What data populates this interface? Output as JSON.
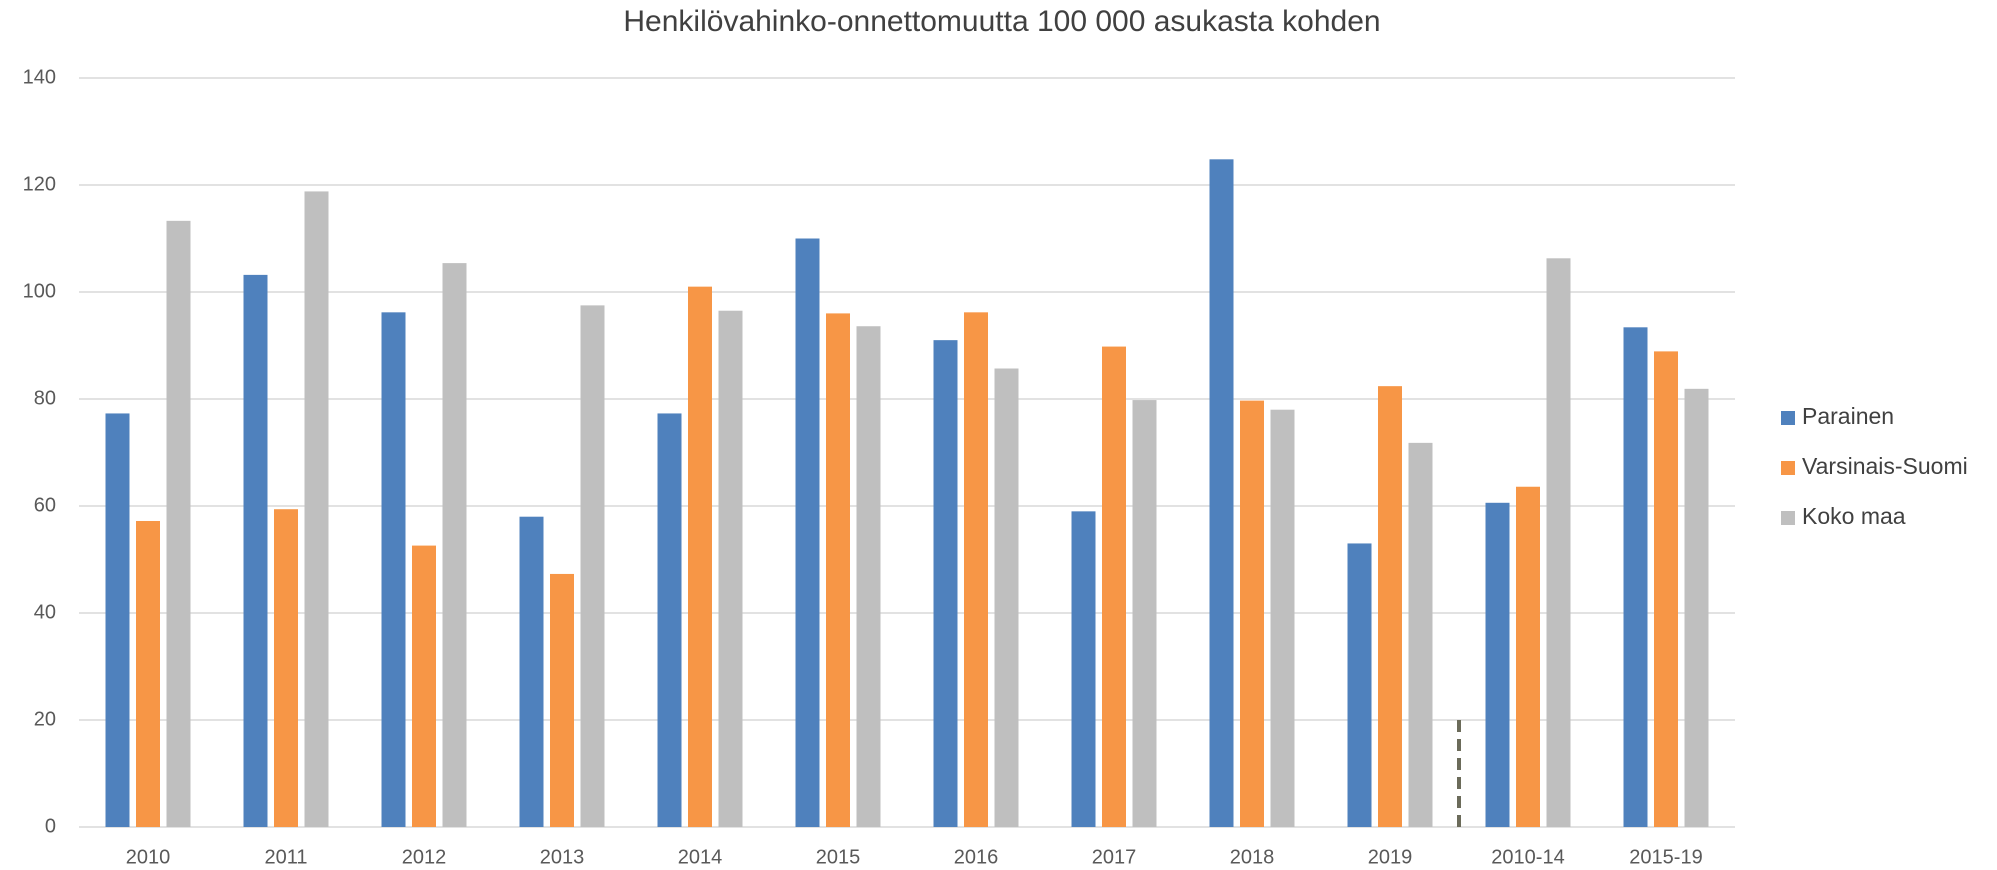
{
  "chart_data": {
    "type": "bar",
    "title": "Henkilövahinko-onnettomuutta 100 000 asukasta kohden",
    "categories": [
      "2010",
      "2011",
      "2012",
      "2013",
      "2014",
      "2015",
      "2016",
      "2017",
      "2018",
      "2019",
      "2010-14",
      "2015-19"
    ],
    "series": [
      {
        "name": "Parainen",
        "color": "#4f81bd",
        "values": [
          77.3,
          103.2,
          96.2,
          58,
          77.3,
          110,
          91,
          59,
          124.8,
          53,
          60.6,
          93.4
        ]
      },
      {
        "name": "Varsinais-Suomi",
        "color": "#f79646",
        "values": [
          57.2,
          59.4,
          52.6,
          47.3,
          101,
          96,
          96.2,
          89.8,
          79.7,
          82.4,
          63.6,
          88.9
        ]
      },
      {
        "name": "Koko maa",
        "color": "#bfbfbf",
        "values": [
          113.3,
          118.8,
          105.4,
          97.5,
          96.5,
          93.6,
          85.7,
          79.8,
          78,
          71.8,
          106.3,
          81.9
        ]
      }
    ],
    "ylim": [
      0,
      140
    ],
    "yticks": [
      0,
      20,
      40,
      60,
      80,
      100,
      120,
      140
    ],
    "grid": true,
    "legend": "right"
  }
}
